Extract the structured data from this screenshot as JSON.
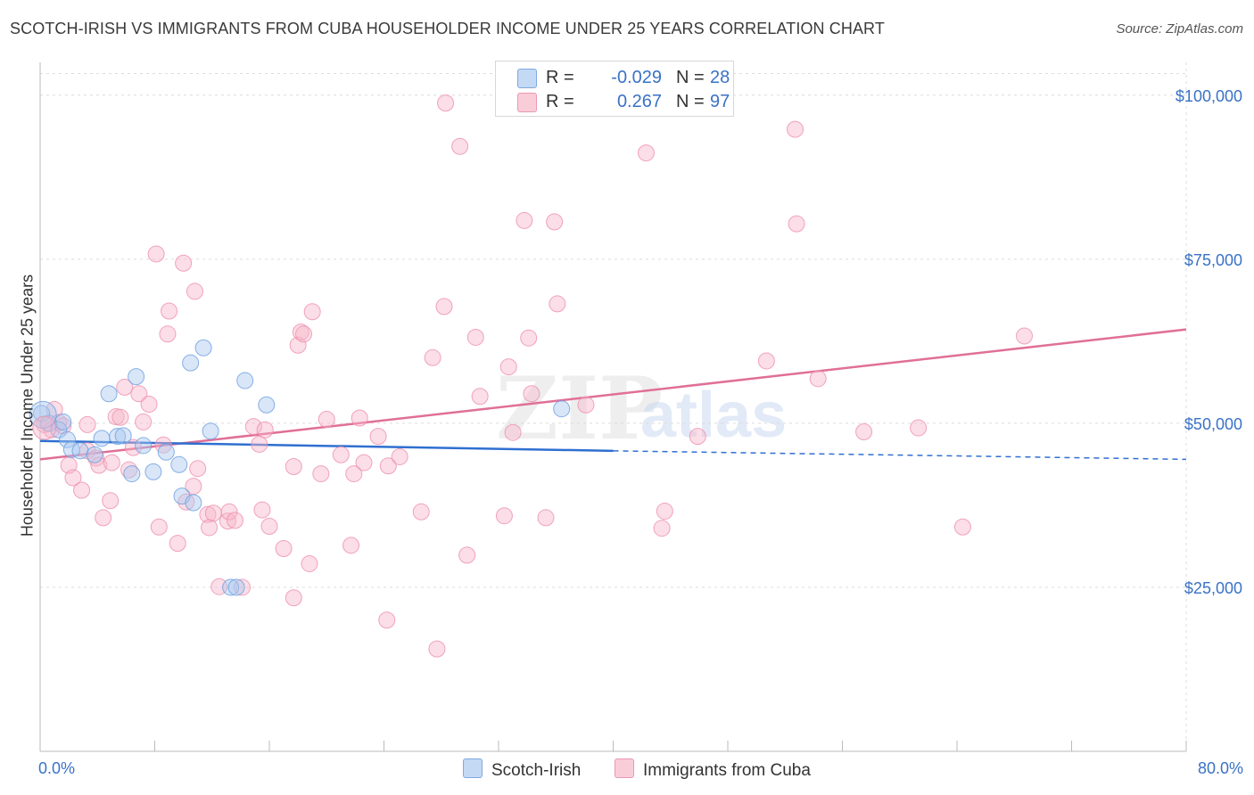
{
  "title": "SCOTCH-IRISH VS IMMIGRANTS FROM CUBA HOUSEHOLDER INCOME UNDER 25 YEARS CORRELATION CHART",
  "source": "Source: ZipAtlas.com",
  "watermark": {
    "zip": "ZIP",
    "atlas": "atlas"
  },
  "legend": {
    "r_label": "R =",
    "n_label": "N =",
    "rows": [
      {
        "r": "-0.029",
        "n": "28",
        "color": "#a9c8f0"
      },
      {
        "r": "0.267",
        "n": "97",
        "color": "#f6b6c9"
      }
    ]
  },
  "bottom_legend": [
    "Scotch-Irish",
    "Immigrants from Cuba"
  ],
  "chart_data": {
    "type": "scatter",
    "title": "SCOTCH-IRISH VS IMMIGRANTS FROM CUBA HOUSEHOLDER INCOME UNDER 25 YEARS CORRELATION CHART",
    "xlabel": "",
    "ylabel": "Householder Income Under 25 years",
    "xlim": [
      0,
      80
    ],
    "ylim": [
      0,
      105000
    ],
    "x_tick_labels": [
      "0.0%",
      "80.0%"
    ],
    "y_ticks": [
      {
        "value": 25000,
        "label": "$25,000"
      },
      {
        "value": 50000,
        "label": "$50,000"
      },
      {
        "value": 75000,
        "label": "$75,000"
      },
      {
        "value": 100000,
        "label": "$100,000"
      }
    ],
    "grid": true,
    "series": [
      {
        "name": "Scotch-Irish",
        "color": "#6a9ede",
        "fill": "#a9c8f0",
        "trend": {
          "x0": 0,
          "y0": 47300,
          "x1": 40,
          "y1": 45800,
          "dashed_to_x": 80,
          "dashed_to_y": 44500,
          "color": "#2f6fd1"
        },
        "points": [
          [
            0.1,
            51500
          ],
          [
            0.6,
            50000
          ],
          [
            1.3,
            49000
          ],
          [
            1.6,
            50200
          ],
          [
            1.9,
            47500
          ],
          [
            2.2,
            46000
          ],
          [
            2.8,
            45800
          ],
          [
            3.8,
            45200
          ],
          [
            4.3,
            47700
          ],
          [
            4.8,
            54500
          ],
          [
            5.4,
            48000
          ],
          [
            5.8,
            48100
          ],
          [
            6.4,
            42300
          ],
          [
            6.7,
            57100
          ],
          [
            7.2,
            46600
          ],
          [
            7.9,
            42600
          ],
          [
            8.8,
            45600
          ],
          [
            9.7,
            43700
          ],
          [
            9.9,
            38900
          ],
          [
            10.5,
            59200
          ],
          [
            10.7,
            37900
          ],
          [
            11.4,
            61500
          ],
          [
            11.9,
            48800
          ],
          [
            13.3,
            25000
          ],
          [
            13.7,
            25000
          ],
          [
            14.3,
            56500
          ],
          [
            15.8,
            52800
          ],
          [
            36.4,
            52200
          ]
        ]
      },
      {
        "name": "Immigrants from Cuba",
        "color": "#ee8fac",
        "fill": "#f6b6c9",
        "trend": {
          "x0": 0,
          "y0": 44500,
          "x1": 80,
          "y1": 64300,
          "color": "#e06f97"
        },
        "points": [
          [
            0.3,
            49800
          ],
          [
            0.8,
            49000
          ],
          [
            1.0,
            52100
          ],
          [
            1.3,
            50100
          ],
          [
            1.6,
            49600
          ],
          [
            2.0,
            43600
          ],
          [
            2.3,
            41700
          ],
          [
            2.9,
            39800
          ],
          [
            3.3,
            45800
          ],
          [
            3.3,
            49800
          ],
          [
            3.9,
            44700
          ],
          [
            4.1,
            43600
          ],
          [
            4.4,
            35600
          ],
          [
            4.9,
            38200
          ],
          [
            5.0,
            44000
          ],
          [
            5.3,
            51000
          ],
          [
            5.6,
            50900
          ],
          [
            5.9,
            55500
          ],
          [
            6.2,
            42900
          ],
          [
            6.5,
            46300
          ],
          [
            6.9,
            54500
          ],
          [
            7.2,
            50200
          ],
          [
            7.6,
            52900
          ],
          [
            8.1,
            75800
          ],
          [
            8.3,
            34200
          ],
          [
            8.6,
            46700
          ],
          [
            8.9,
            63600
          ],
          [
            9.0,
            67100
          ],
          [
            9.6,
            31700
          ],
          [
            10.0,
            74400
          ],
          [
            10.2,
            38000
          ],
          [
            10.7,
            40400
          ],
          [
            10.8,
            70100
          ],
          [
            11.0,
            43100
          ],
          [
            11.7,
            36100
          ],
          [
            11.8,
            34100
          ],
          [
            12.1,
            36300
          ],
          [
            12.5,
            25100
          ],
          [
            13.1,
            35100
          ],
          [
            13.2,
            36500
          ],
          [
            13.6,
            35200
          ],
          [
            14.1,
            25000
          ],
          [
            14.9,
            49500
          ],
          [
            15.3,
            46800
          ],
          [
            15.5,
            36800
          ],
          [
            15.7,
            49000
          ],
          [
            16.0,
            34300
          ],
          [
            17.0,
            30900
          ],
          [
            17.7,
            23400
          ],
          [
            17.7,
            43400
          ],
          [
            18.0,
            61900
          ],
          [
            18.2,
            63900
          ],
          [
            18.4,
            63600
          ],
          [
            18.8,
            28600
          ],
          [
            19.0,
            67000
          ],
          [
            19.6,
            42300
          ],
          [
            20.0,
            50600
          ],
          [
            21.0,
            45200
          ],
          [
            21.7,
            31400
          ],
          [
            21.9,
            42300
          ],
          [
            22.3,
            50800
          ],
          [
            22.6,
            44000
          ],
          [
            23.6,
            48000
          ],
          [
            24.2,
            20000
          ],
          [
            24.3,
            43500
          ],
          [
            25.1,
            44900
          ],
          [
            26.6,
            36500
          ],
          [
            27.4,
            60000
          ],
          [
            27.7,
            15600
          ],
          [
            28.2,
            67800
          ],
          [
            28.3,
            98800
          ],
          [
            29.3,
            92200
          ],
          [
            29.8,
            29900
          ],
          [
            30.4,
            63100
          ],
          [
            30.7,
            54100
          ],
          [
            32.4,
            35900
          ],
          [
            32.7,
            58600
          ],
          [
            33.0,
            48600
          ],
          [
            33.8,
            80900
          ],
          [
            34.1,
            63000
          ],
          [
            34.3,
            54500
          ],
          [
            35.3,
            35600
          ],
          [
            35.9,
            80700
          ],
          [
            36.1,
            68200
          ],
          [
            38.1,
            52800
          ],
          [
            42.3,
            91200
          ],
          [
            43.4,
            34000
          ],
          [
            43.6,
            36600
          ],
          [
            45.9,
            48000
          ],
          [
            50.7,
            59500
          ],
          [
            52.7,
            94800
          ],
          [
            52.8,
            80400
          ],
          [
            54.3,
            56800
          ],
          [
            57.5,
            48700
          ],
          [
            61.3,
            49300
          ],
          [
            64.4,
            34200
          ],
          [
            68.7,
            63300
          ]
        ]
      }
    ]
  }
}
